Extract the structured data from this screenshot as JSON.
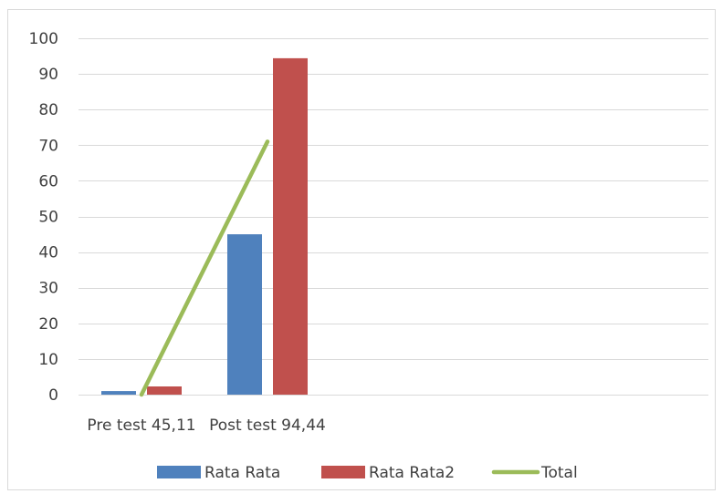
{
  "chart_data": {
    "type": "bar",
    "categories": [
      "Pre test 45,11",
      "Post test 94,44",
      "",
      "",
      ""
    ],
    "series": [
      {
        "name": "Rata Rata",
        "kind": "bar",
        "color": "#4F81BD",
        "values": [
          1,
          45,
          null,
          null,
          null
        ]
      },
      {
        "name": "Rata Rata2",
        "kind": "bar",
        "color": "#C0504D",
        "values": [
          2.3,
          94.4,
          null,
          null,
          null
        ]
      },
      {
        "name": "Total",
        "kind": "line",
        "color": "#9BBB59",
        "values": [
          0,
          71,
          null,
          null,
          null
        ]
      }
    ],
    "ylim": [
      0,
      100
    ],
    "yticks": [
      0,
      10,
      20,
      30,
      40,
      50,
      60,
      70,
      80,
      90,
      100
    ],
    "grid": true,
    "legend": "bottom",
    "title": "",
    "xlabel": "",
    "ylabel": ""
  }
}
